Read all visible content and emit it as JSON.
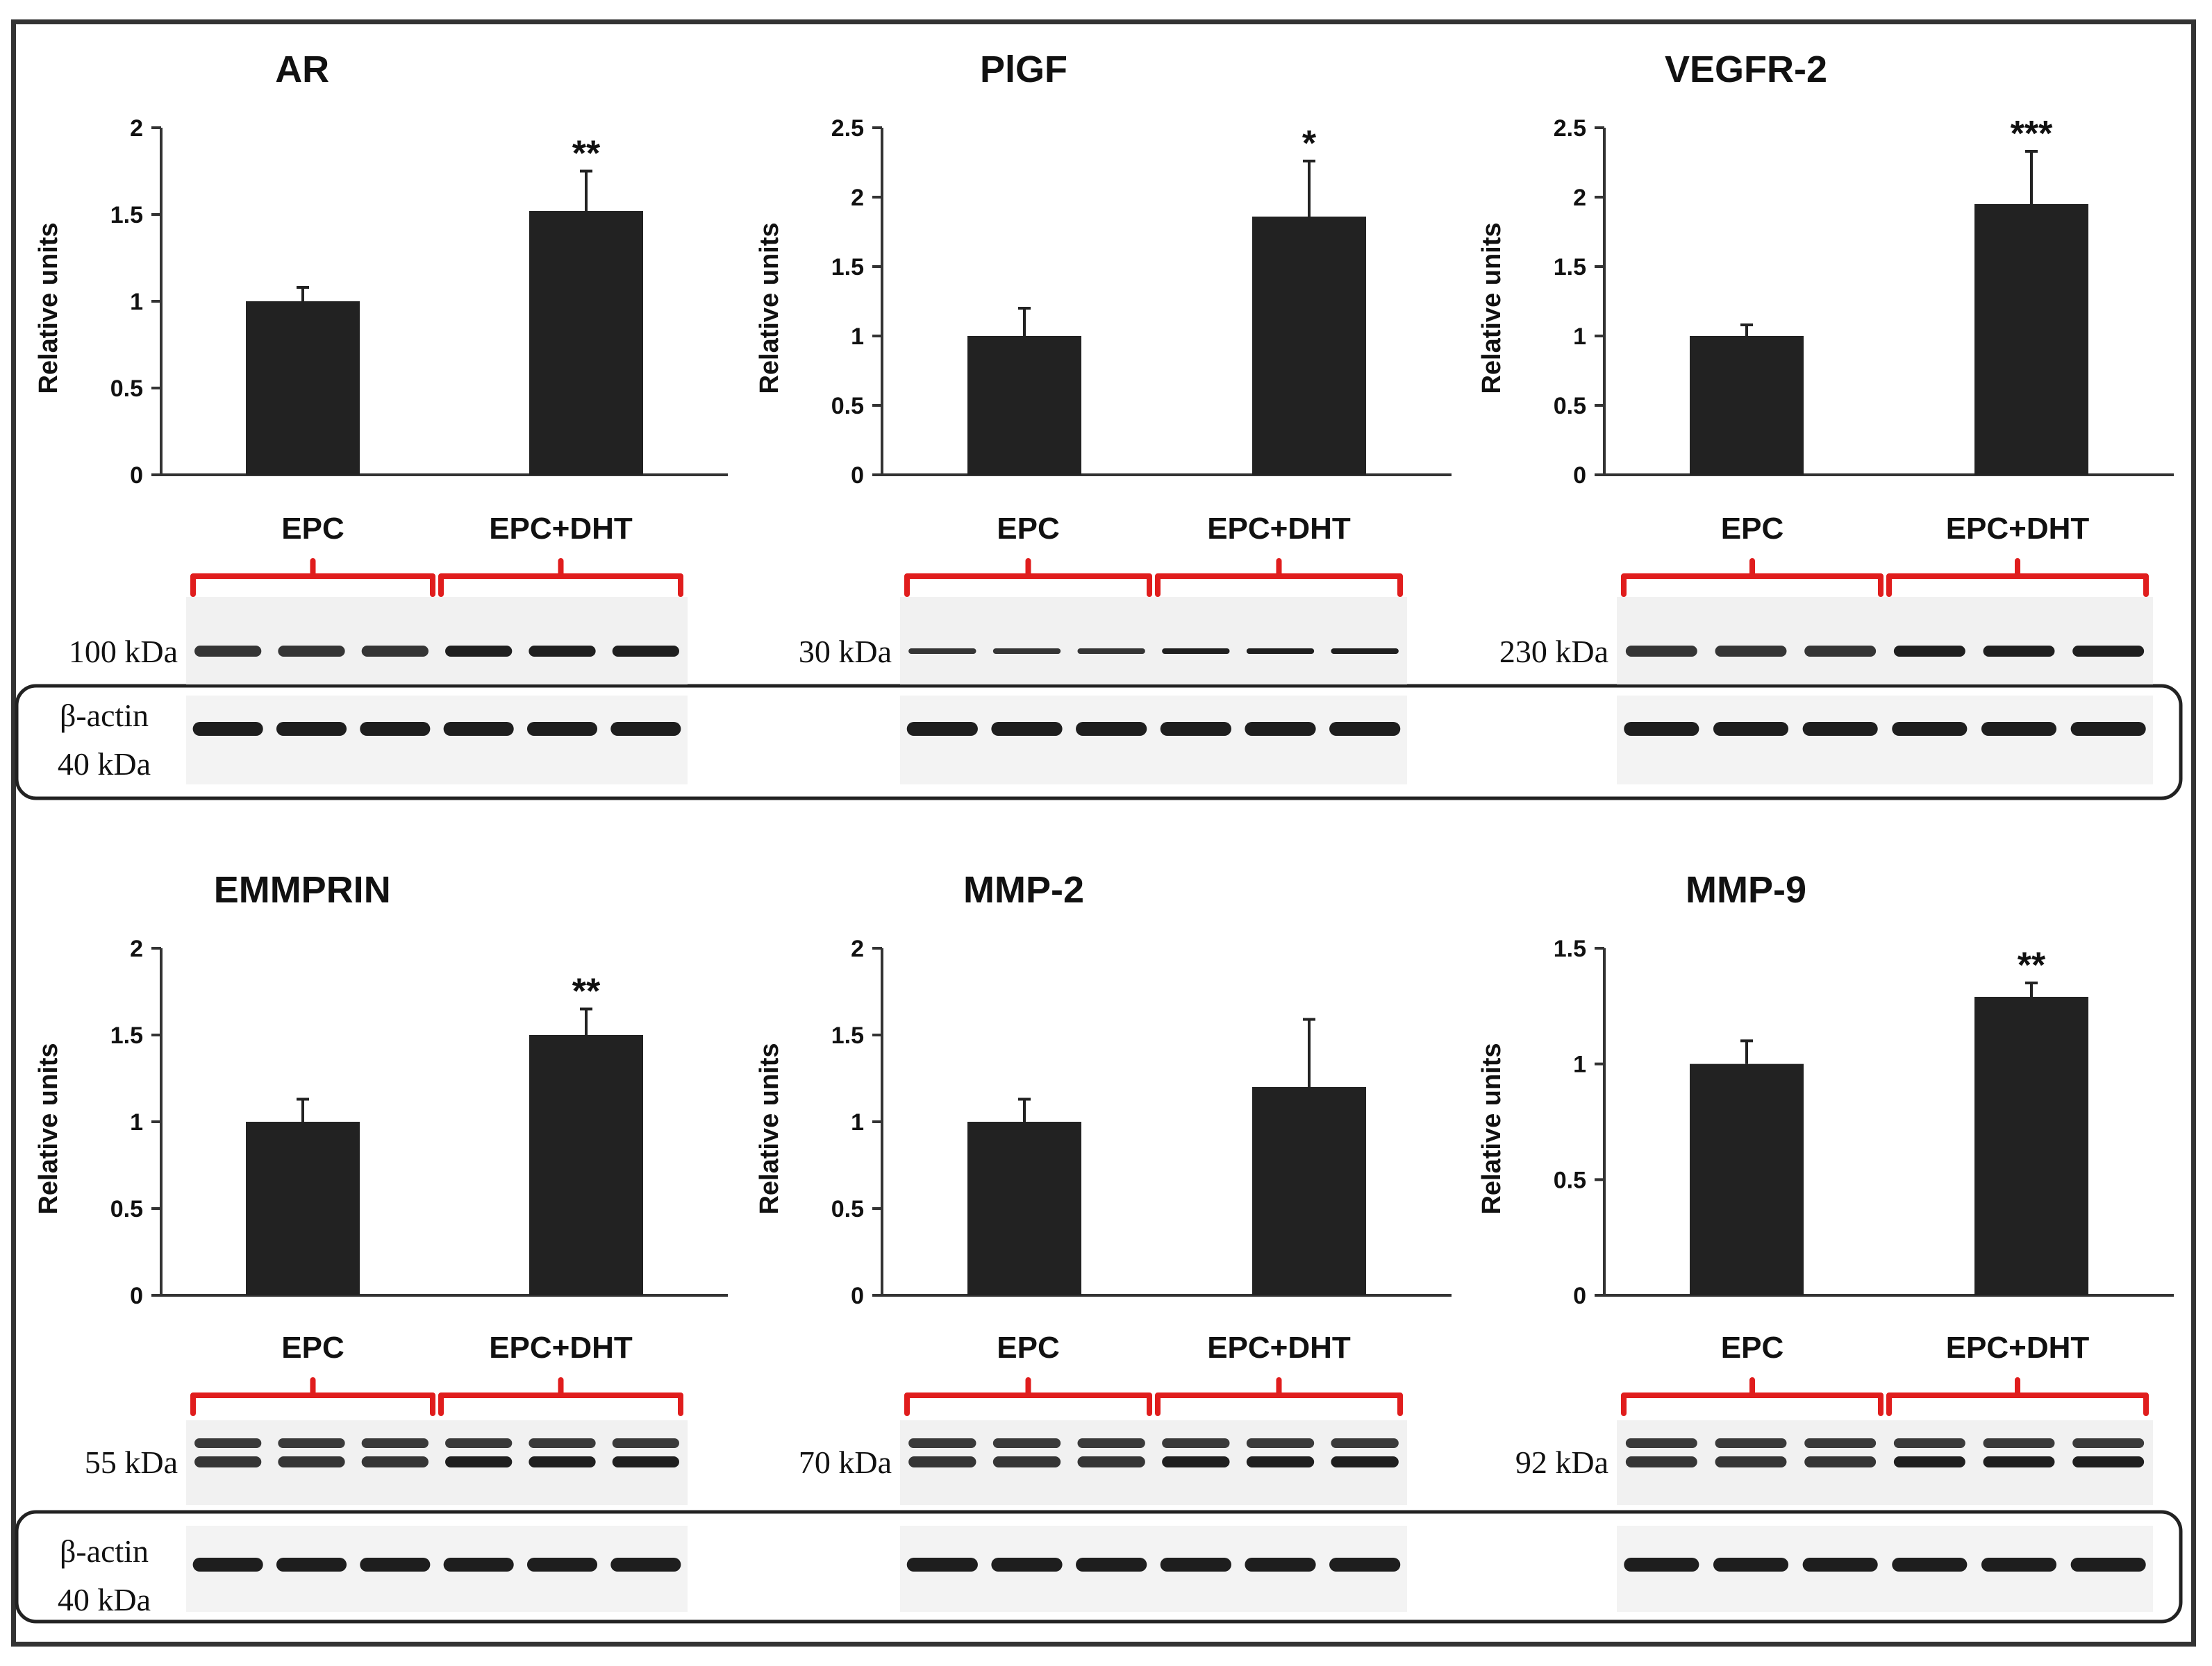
{
  "figure": {
    "actin_label": "β-actin",
    "actin_size": "40 kDa",
    "groups": [
      "EPC",
      "EPC+DHT"
    ],
    "colors": {
      "bar": "#222222",
      "bracket": "#e01d1d",
      "axis": "#333333",
      "frame": "#333333"
    }
  },
  "chart_data": [
    {
      "type": "bar",
      "title": "AR",
      "ylabel": "Relative units",
      "categories": [
        "EPC",
        "EPC+DHT"
      ],
      "values": [
        1.0,
        1.52
      ],
      "errors": [
        0.08,
        0.23
      ],
      "ylim": [
        0,
        2
      ],
      "yticks": [
        0,
        0.5,
        1,
        1.5,
        2
      ],
      "ytick_labels": [
        "0",
        "0.5",
        "1",
        "1.5",
        "2"
      ],
      "significance": [
        "",
        "**"
      ],
      "blot_label": "100 kDa",
      "has_actin": true
    },
    {
      "type": "bar",
      "title": "PlGF",
      "ylabel": "Relative units",
      "categories": [
        "EPC",
        "EPC+DHT"
      ],
      "values": [
        1.0,
        1.86
      ],
      "errors": [
        0.2,
        0.4
      ],
      "ylim": [
        0,
        2.5
      ],
      "yticks": [
        0,
        0.5,
        1,
        1.5,
        2,
        2.5
      ],
      "ytick_labels": [
        "0",
        "0.5",
        "1",
        "1.5",
        "2",
        "2.5"
      ],
      "significance": [
        "",
        "*"
      ],
      "blot_label": "30 kDa",
      "has_actin": true
    },
    {
      "type": "bar",
      "title": "VEGFR-2",
      "ylabel": "Relative units",
      "categories": [
        "EPC",
        "EPC+DHT"
      ],
      "values": [
        1.0,
        1.95
      ],
      "errors": [
        0.08,
        0.38
      ],
      "ylim": [
        0,
        2.5
      ],
      "yticks": [
        0,
        0.5,
        1,
        1.5,
        2,
        2.5
      ],
      "ytick_labels": [
        "0",
        "0.5",
        "1",
        "1.5",
        "2",
        "2.5"
      ],
      "significance": [
        "",
        "***"
      ],
      "blot_label": "230 kDa",
      "has_actin": true
    },
    {
      "type": "bar",
      "title": "EMMPRIN",
      "ylabel": "Relative units",
      "categories": [
        "EPC",
        "EPC+DHT"
      ],
      "values": [
        1.0,
        1.5
      ],
      "errors": [
        0.13,
        0.15
      ],
      "ylim": [
        0,
        2
      ],
      "yticks": [
        0,
        0.5,
        1,
        1.5,
        2
      ],
      "ytick_labels": [
        "0",
        "0.5",
        "1",
        "1.5",
        "2"
      ],
      "significance": [
        "",
        "**"
      ],
      "blot_label": "55 kDa",
      "has_actin": true
    },
    {
      "type": "bar",
      "title": "MMP-2",
      "ylabel": "Relative units",
      "categories": [
        "EPC",
        "EPC+DHT"
      ],
      "values": [
        1.0,
        1.2
      ],
      "errors": [
        0.13,
        0.39
      ],
      "ylim": [
        0,
        2
      ],
      "yticks": [
        0,
        0.5,
        1,
        1.5,
        2
      ],
      "ytick_labels": [
        "0",
        "0.5",
        "1",
        "1.5",
        "2"
      ],
      "significance": [
        "",
        ""
      ],
      "blot_label": "70 kDa",
      "has_actin": true
    },
    {
      "type": "bar",
      "title": "MMP-9",
      "ylabel": "Relative units",
      "categories": [
        "EPC",
        "EPC+DHT"
      ],
      "values": [
        1.0,
        1.29
      ],
      "errors": [
        0.1,
        0.06
      ],
      "ylim": [
        0,
        1.5
      ],
      "yticks": [
        0,
        0.5,
        1,
        1.5
      ],
      "ytick_labels": [
        "0",
        "0.5",
        "1",
        "1.5"
      ],
      "significance": [
        "",
        "**"
      ],
      "blot_label": "92 kDa",
      "has_actin": true
    }
  ]
}
